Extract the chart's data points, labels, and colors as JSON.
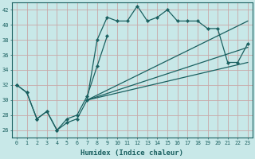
{
  "title": "",
  "xlabel": "Humidex (Indice chaleur)",
  "ylabel": "",
  "background_color": "#c8e8e8",
  "grid_color": "#a8cece",
  "line_color": "#1a6060",
  "xlim": [
    -0.5,
    23.5
  ],
  "ylim": [
    25,
    43
  ],
  "xticks": [
    0,
    1,
    2,
    3,
    4,
    5,
    6,
    7,
    8,
    9,
    10,
    11,
    12,
    13,
    14,
    15,
    16,
    17,
    18,
    19,
    20,
    21,
    22,
    23
  ],
  "yticks": [
    26,
    28,
    30,
    32,
    34,
    36,
    38,
    40,
    42
  ],
  "series1": [
    32,
    31,
    27.5,
    28.5,
    26,
    27,
    27.5,
    30,
    38,
    41,
    40.5,
    40.5,
    42.5,
    40.5,
    41,
    42,
    40.5,
    40.5,
    40.5,
    39.5,
    39.5,
    35,
    35,
    37.5
  ],
  "series2": [
    32,
    31,
    27.5,
    28.5,
    26,
    27.5,
    28,
    30.5,
    34.5,
    38.5,
    null,
    null,
    null,
    null,
    null,
    null,
    null,
    null,
    null,
    null,
    null,
    null,
    null,
    null
  ],
  "line_a": {
    "x": [
      7,
      23
    ],
    "y": [
      30,
      40.5
    ]
  },
  "line_b": {
    "x": [
      7,
      23
    ],
    "y": [
      30,
      37
    ]
  },
  "line_c": {
    "x": [
      7,
      23
    ],
    "y": [
      30,
      35
    ]
  }
}
